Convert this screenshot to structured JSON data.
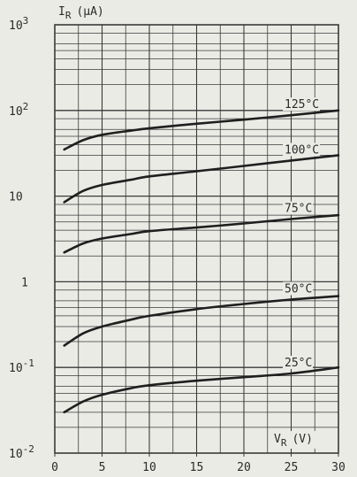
{
  "chart_data": {
    "type": "line",
    "title": "",
    "xlabel": "V_R (V)",
    "ylabel": "I_R (µA)",
    "xlim": [
      0,
      30
    ],
    "ylim": [
      0.01,
      1000
    ],
    "yscale": "log",
    "grid": true,
    "x_ticks": [
      0,
      5,
      10,
      15,
      20,
      25,
      30
    ],
    "x_tick_labels": [
      "0",
      "5",
      "10",
      "15",
      "20",
      "25",
      "30"
    ],
    "y_tick_labels": [
      {
        "value": 0.01,
        "base": "10",
        "exp": "-2"
      },
      {
        "value": 0.1,
        "base": "10",
        "exp": "-1"
      },
      {
        "value": 1,
        "base": "1",
        "exp": ""
      },
      {
        "value": 10,
        "base": "10",
        "exp": ""
      },
      {
        "value": 100,
        "base": "10",
        "exp": "2"
      },
      {
        "value": 1000,
        "base": "10",
        "exp": "3"
      }
    ],
    "x_axis_label": {
      "sym": "V",
      "sub": "R",
      "unit": "(V)"
    },
    "y_axis_label": {
      "sym": "I",
      "sub": "R",
      "unit": "(µA)"
    },
    "series": [
      {
        "name": "25°C",
        "x": [
          1,
          3,
          5,
          8,
          10,
          15,
          20,
          25,
          30
        ],
        "y": [
          0.03,
          0.04,
          0.048,
          0.057,
          0.062,
          0.07,
          0.077,
          0.085,
          0.1
        ]
      },
      {
        "name": "50°C",
        "x": [
          1,
          3,
          5,
          8,
          10,
          15,
          20,
          25,
          30
        ],
        "y": [
          0.18,
          0.25,
          0.3,
          0.36,
          0.4,
          0.48,
          0.55,
          0.62,
          0.68
        ]
      },
      {
        "name": "75°C",
        "x": [
          1,
          3,
          5,
          8,
          10,
          15,
          20,
          25,
          30
        ],
        "y": [
          2.2,
          2.8,
          3.2,
          3.6,
          3.9,
          4.3,
          4.8,
          5.4,
          6.0
        ]
      },
      {
        "name": "100°C",
        "x": [
          1,
          3,
          5,
          8,
          10,
          15,
          20,
          25,
          30
        ],
        "y": [
          8.5,
          11.5,
          13.5,
          15.5,
          17,
          19.5,
          22.5,
          26,
          30
        ]
      },
      {
        "name": "125°C",
        "x": [
          1,
          3,
          5,
          8,
          10,
          15,
          20,
          25,
          30
        ],
        "y": [
          35,
          45,
          52,
          58,
          62,
          70,
          78,
          88,
          100
        ]
      }
    ]
  }
}
